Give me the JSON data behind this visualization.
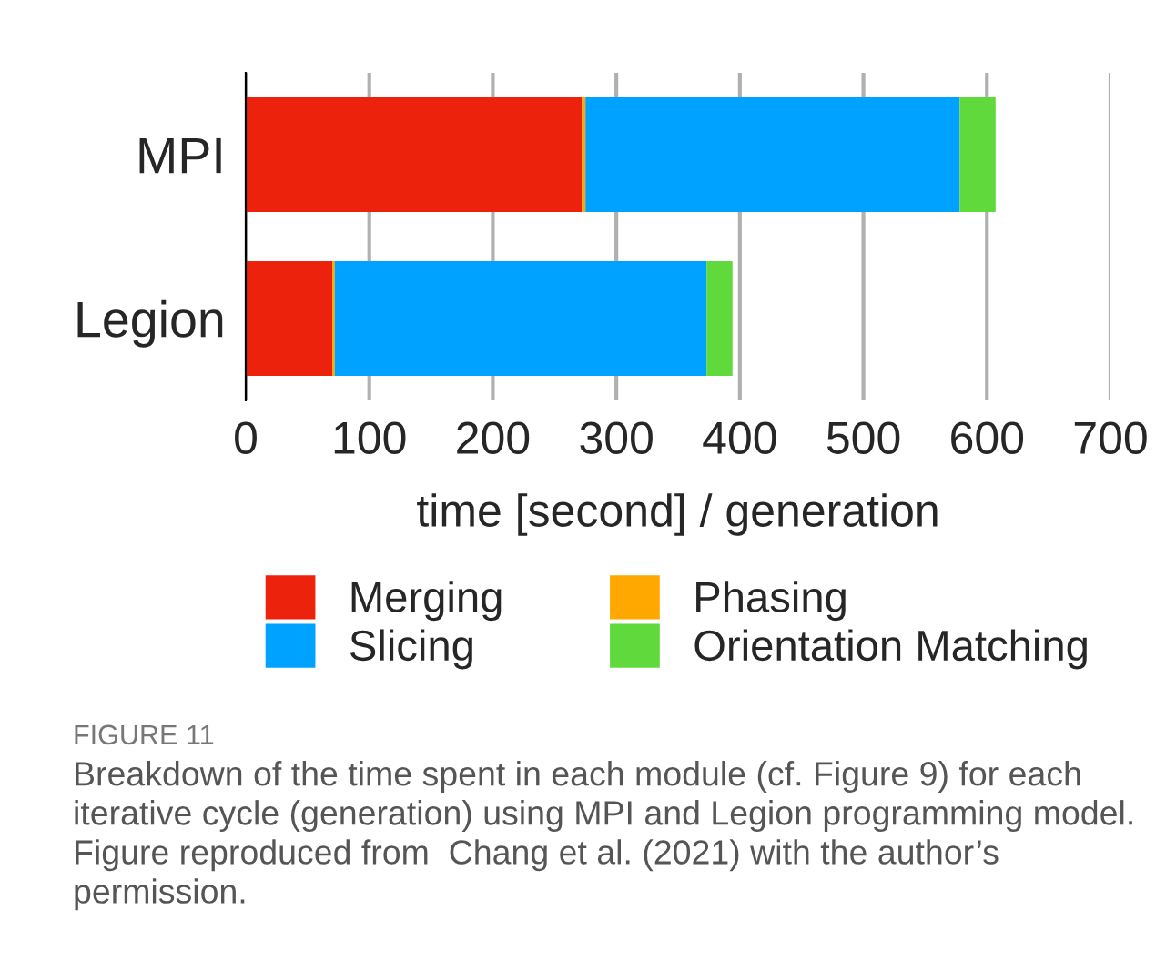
{
  "chart_data": {
    "type": "bar",
    "orientation": "horizontal",
    "stacked": true,
    "categories": [
      "MPI",
      "Legion"
    ],
    "series": [
      {
        "name": "Merging",
        "color": "#ec220c",
        "values": [
          272,
          70
        ]
      },
      {
        "name": "Phasing",
        "color": "#ffa800",
        "values": [
          3,
          2
        ]
      },
      {
        "name": "Slicing",
        "color": "#00a2ff",
        "values": [
          303,
          301
        ]
      },
      {
        "name": "Orientation Matching",
        "color": "#5fd93b",
        "values": [
          29,
          21
        ]
      }
    ],
    "xlabel": "time [second] / generation",
    "xlim": [
      0,
      700
    ],
    "xticks": [
      0,
      100,
      200,
      300,
      400,
      500,
      600,
      700
    ],
    "grid": "x",
    "legend": "bottom",
    "annotations": [
      "FIGURE 11",
      "Breakdown of the time spent in each module (cf. Figure 9) for each iterative cycle (generation) using MPI and Legion programming model. Figure reproduced from  Chang et al. (2021) with the author’s permission."
    ]
  }
}
